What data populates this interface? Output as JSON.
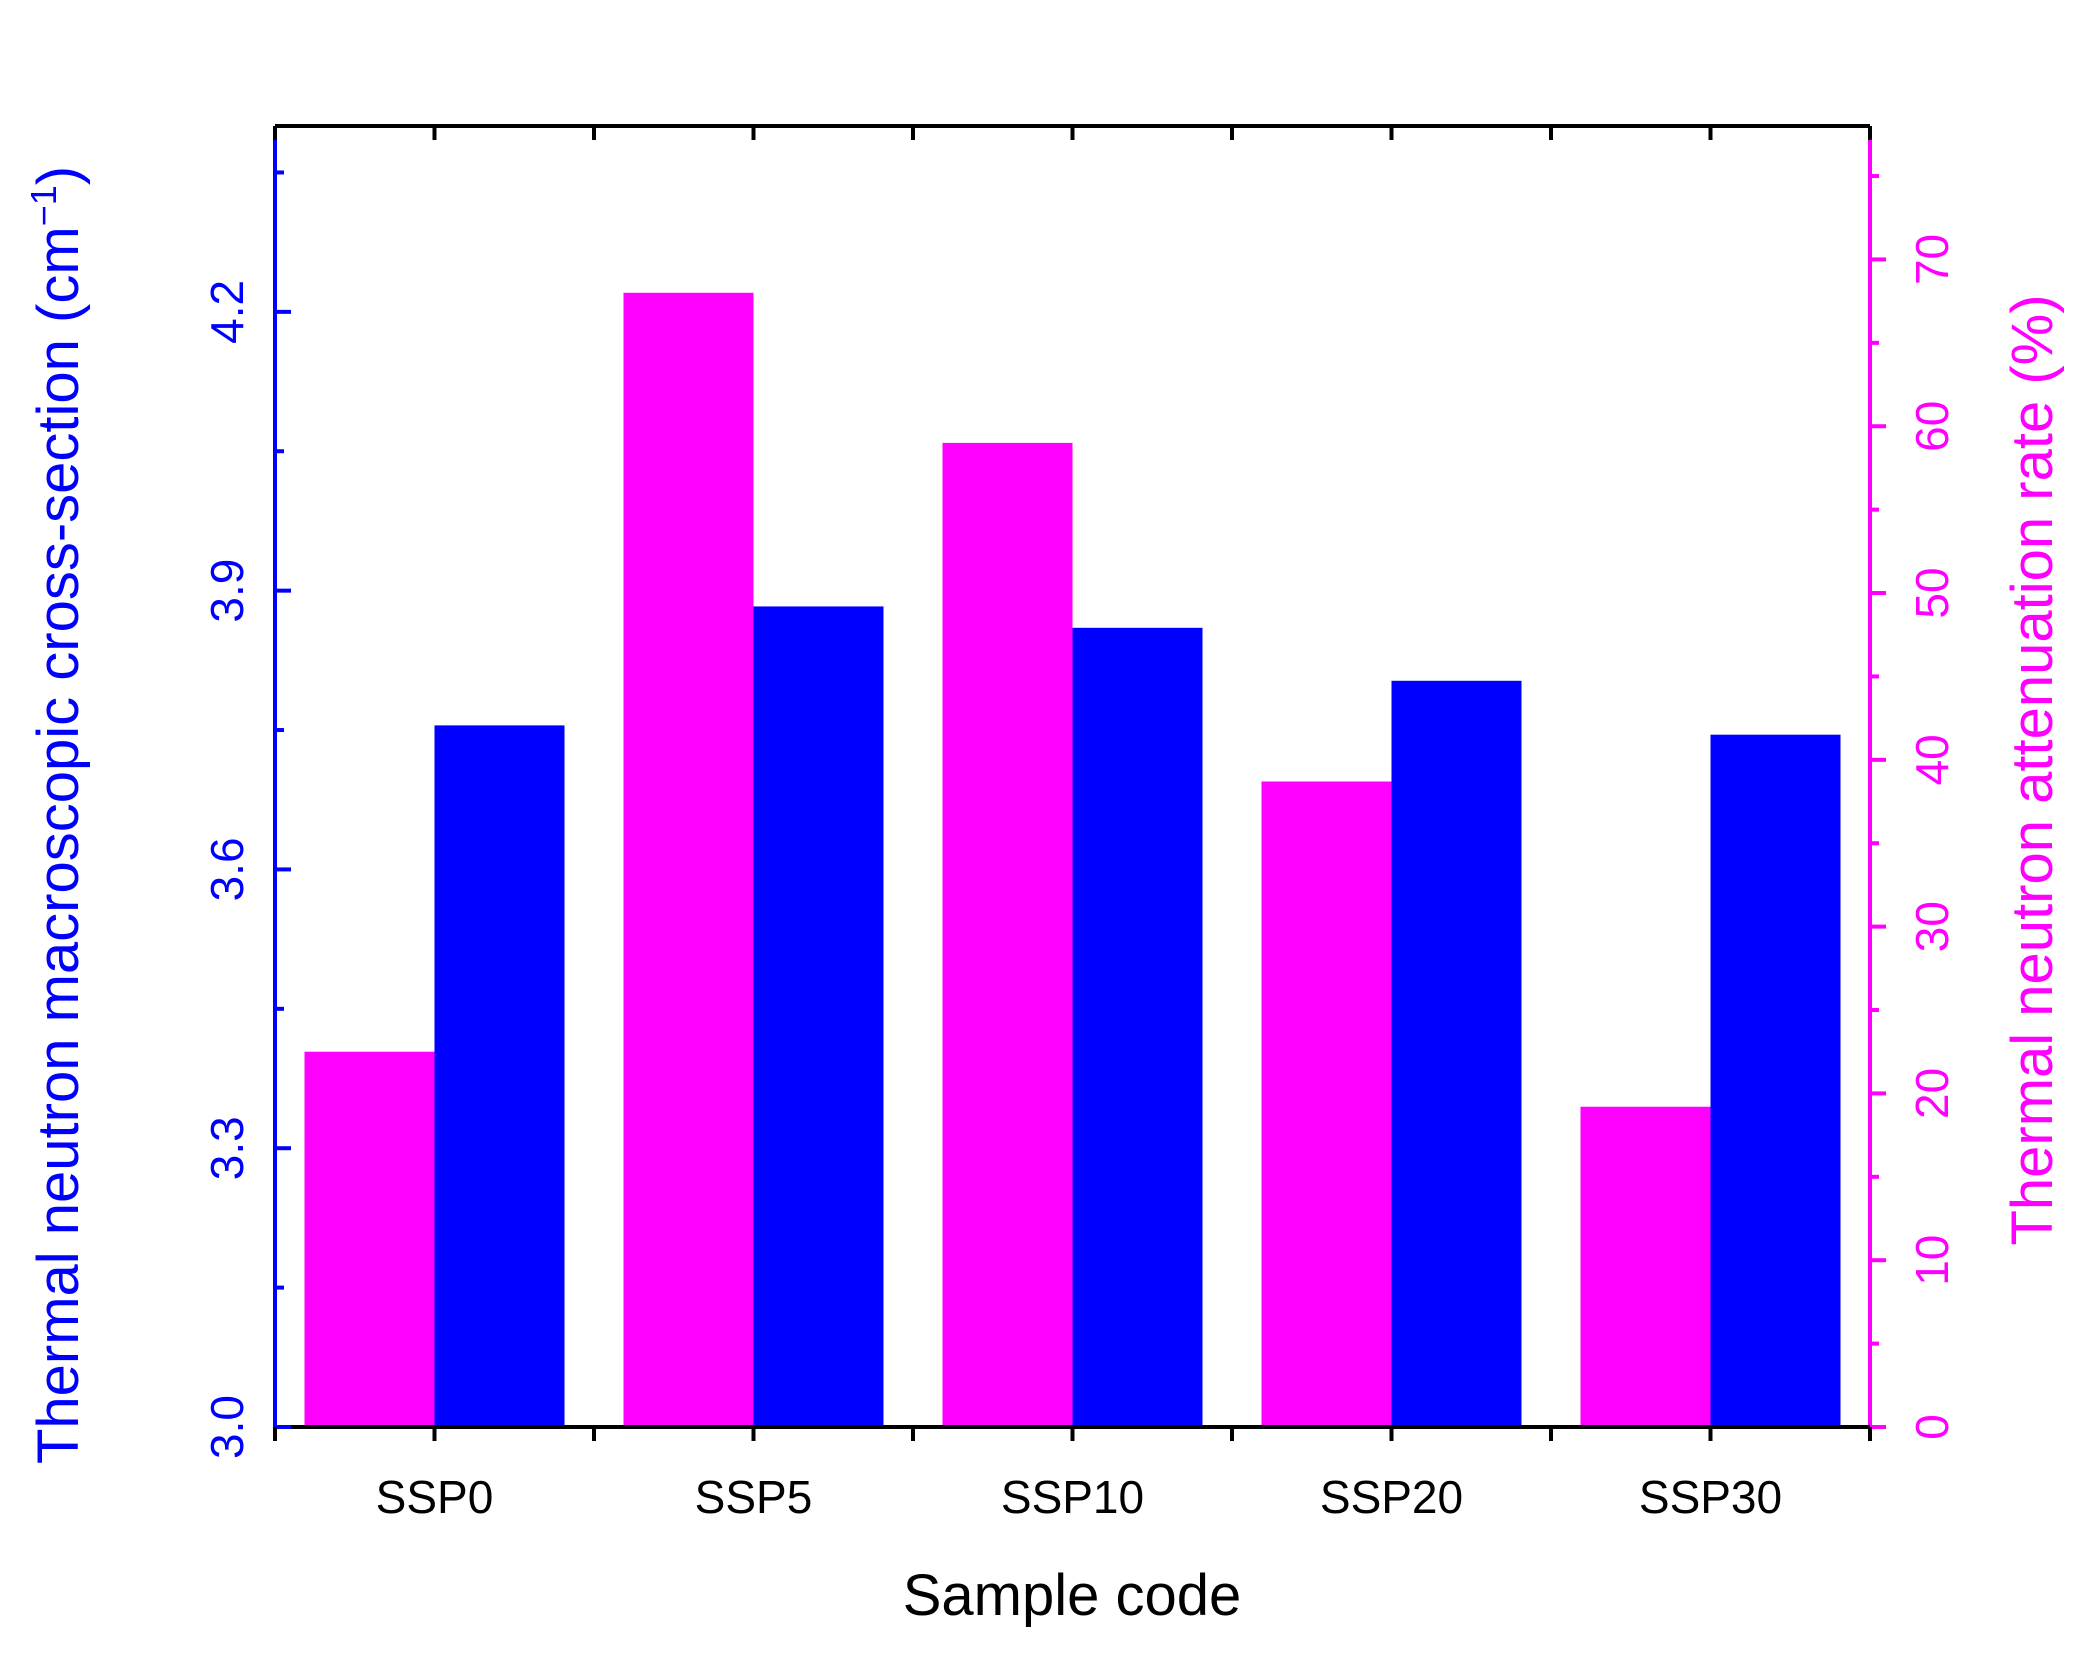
{
  "chart_data": {
    "type": "bar",
    "categories": [
      "SSP0",
      "SSP5",
      "SSP10",
      "SSP20",
      "SSP30"
    ],
    "xlabel": "Sample code",
    "series": [
      {
        "key": "attenuation",
        "name": "Thermal neutron  attenuation rate (%)",
        "axis": "right",
        "color": "#ff00ff",
        "values": [
          22.5,
          68.0,
          59.0,
          38.7,
          19.2
        ]
      },
      {
        "key": "cross_section",
        "name": "Thermal neutron macroscopic cross-section (cm−1)",
        "axis": "left",
        "color": "#0000ff",
        "values": [
          3.755,
          3.883,
          3.86,
          3.803,
          3.745
        ]
      }
    ],
    "y_left": {
      "label_main": "Thermal neutron macroscopic cross-section (cm",
      "label_sup": "−1",
      "label_end": ")",
      "color": "#0000ff",
      "ylim": [
        3.0,
        4.4
      ],
      "ticks": [
        "3.0",
        "3.3",
        "3.6",
        "3.9",
        "4.2"
      ],
      "tick_values": [
        3.0,
        3.3,
        3.6,
        3.9,
        4.2
      ],
      "minor_step": 0.15
    },
    "y_right": {
      "label": "Thermal neutron  attenuation rate (%)",
      "color": "#ff00ff",
      "ylim": [
        0,
        78
      ],
      "ticks": [
        "0",
        "10",
        "20",
        "30",
        "40",
        "50",
        "60",
        "70"
      ],
      "tick_values": [
        0,
        10,
        20,
        30,
        40,
        50,
        60,
        70
      ],
      "minor_step": 5
    },
    "grid": false,
    "legend": "none"
  }
}
